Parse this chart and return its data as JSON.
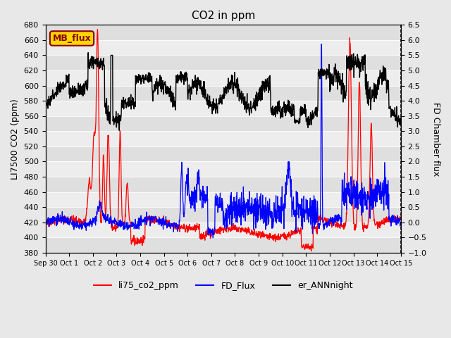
{
  "title": "CO2 in ppm",
  "ylabel_left": "LI7500 CO2 (ppm)",
  "ylabel_right": "FD Chamber flux",
  "ylim_left": [
    380,
    680
  ],
  "ylim_right": [
    -1.0,
    6.5
  ],
  "yticks_left": [
    380,
    400,
    420,
    440,
    460,
    480,
    500,
    520,
    540,
    560,
    580,
    600,
    620,
    640,
    660,
    680
  ],
  "yticks_right": [
    -1.0,
    -0.5,
    0.0,
    0.5,
    1.0,
    1.5,
    2.0,
    2.5,
    3.0,
    3.5,
    4.0,
    4.5,
    5.0,
    5.5,
    6.0,
    6.5
  ],
  "xtick_labels": [
    "Sep 30",
    "Oct 1",
    "Oct 2",
    "Oct 3",
    "Oct 4",
    "Oct 5",
    "Oct 6",
    "Oct 7",
    "Oct 8",
    "Oct 9",
    "Oct 10",
    "Oct 11",
    "Oct 12",
    "Oct 13",
    "Oct 14",
    "Oct 15"
  ],
  "annotation_text": "MB_flux",
  "annotation_color": "#8B0000",
  "annotation_bg": "#FFD700",
  "line_red_label": "li75_co2_ppm",
  "line_blue_label": "FD_Flux",
  "line_black_label": "er_ANNnight",
  "background_color": "#E8E8E8"
}
